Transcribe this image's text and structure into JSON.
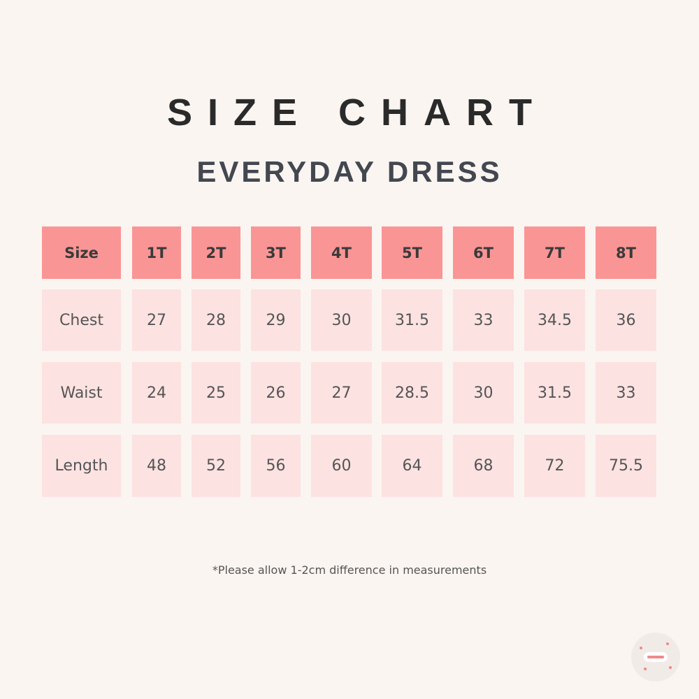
{
  "header": {
    "title": "SIZE CHART",
    "subtitle": "EVERYDAY DRESS"
  },
  "table": {
    "columns": [
      "Size",
      "1T",
      "2T",
      "3T",
      "4T",
      "5T",
      "6T",
      "7T",
      "8T"
    ],
    "rows": [
      [
        "Chest",
        "27",
        "28",
        "29",
        "30",
        "31.5",
        "33",
        "34.5",
        "36"
      ],
      [
        "Waist",
        "24",
        "25",
        "26",
        "27",
        "28.5",
        "30",
        "31.5",
        "33"
      ],
      [
        "Length",
        "48",
        "52",
        "56",
        "60",
        "64",
        "68",
        "72",
        "75.5"
      ]
    ]
  },
  "note": "*Please allow 1-2cm difference in measurements"
}
